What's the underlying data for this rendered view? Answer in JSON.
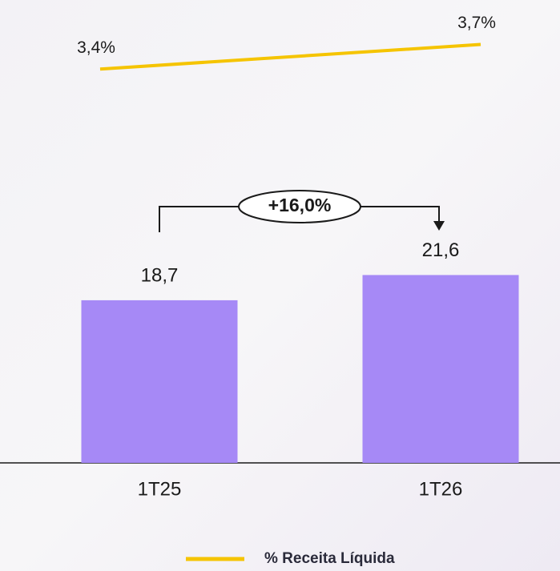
{
  "chart_data": {
    "type": "bar",
    "categories": [
      "1T25",
      "1T26"
    ],
    "series": [
      {
        "type": "bar",
        "color": "#a689f6",
        "values": [
          18.7,
          21.6
        ],
        "value_labels": [
          "18,7",
          "21,6"
        ]
      },
      {
        "type": "line",
        "axis": "y2",
        "name": "% Receita Líquida",
        "color": "#f5c400",
        "values": [
          3.4,
          3.7
        ],
        "value_labels": [
          "3,4%",
          "3,7%"
        ]
      }
    ],
    "annotation": "+16,0%",
    "ylim": [
      0,
      50
    ],
    "y2lim": [
      -1.4,
      3.9
    ],
    "legend": "bottom"
  }
}
